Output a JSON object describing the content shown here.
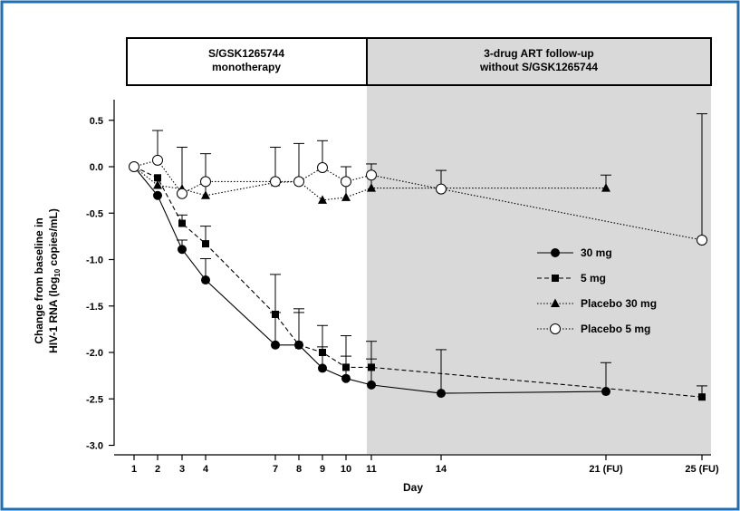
{
  "colors": {
    "frame_border": "#1f6fb5",
    "followup_shading": "#d9d9d9",
    "series_line": "#000000",
    "open_marker_fill": "#ffffff"
  },
  "banners": {
    "left": {
      "line1": "S/GSK1265744",
      "line2": "monotherapy"
    },
    "right": {
      "line1": "3-drug ART follow-up",
      "line2": "without S/GSK1265744"
    }
  },
  "chart_data": {
    "type": "line",
    "xlabel": "Day",
    "ylabel_line1": "Change from baseline in",
    "ylabel_line2_prefix": "HIV-1 RNA (log",
    "ylabel_line2_sub": "10",
    "ylabel_line2_suffix": " copies/mL)",
    "ylim": [
      -3.0,
      0.7
    ],
    "yticks": [
      0.5,
      0.0,
      -0.5,
      -1.0,
      -1.5,
      -2.0,
      -2.5,
      -3.0
    ],
    "ytick_labels": [
      "0.5",
      "0.0",
      "-0.5",
      "-1.0",
      "-1.5",
      "-2.0",
      "-2.5",
      "-3.0"
    ],
    "xticks": [
      1,
      2,
      3,
      4,
      7,
      8,
      9,
      10,
      11,
      14,
      21,
      25
    ],
    "xtick_labels": [
      "1",
      "2",
      "3",
      "4",
      "7",
      "8",
      "9",
      "10",
      "11",
      "14",
      "21 (FU)",
      "25 (FU)"
    ],
    "shaded_from_day": 11,
    "legend_position": "center-right",
    "series": [
      {
        "name": "30 mg",
        "marker": "filled-circle",
        "line_style": "solid",
        "x": [
          1,
          2,
          3,
          4,
          7,
          8,
          9,
          10,
          11,
          14,
          21
        ],
        "y": [
          0.0,
          -0.31,
          -0.89,
          -1.22,
          -1.92,
          -1.92,
          -2.17,
          -2.28,
          -2.35,
          -2.44,
          -2.42
        ],
        "error_upper": [
          null,
          null,
          -0.79,
          -0.99,
          -1.57,
          -1.57,
          -1.94,
          -2.04,
          -2.07,
          -1.97,
          -2.11
        ]
      },
      {
        "name": "5 mg",
        "marker": "filled-square",
        "line_style": "dashed",
        "x": [
          1,
          2,
          3,
          4,
          7,
          8,
          9,
          10,
          11,
          25
        ],
        "y": [
          0.0,
          -0.12,
          -0.61,
          -0.83,
          -1.59,
          -1.92,
          -2.0,
          -2.16,
          -2.16,
          -2.48
        ],
        "error_upper": [
          null,
          null,
          -0.52,
          -0.64,
          -1.16,
          -1.53,
          -1.71,
          -1.82,
          -1.88,
          -2.36
        ]
      },
      {
        "name": "Placebo 30 mg",
        "marker": "filled-triangle",
        "line_style": "dotted",
        "x": [
          1,
          2,
          3,
          4,
          7,
          8,
          9,
          10,
          11,
          14,
          21
        ],
        "y": [
          0.0,
          -0.2,
          -0.24,
          -0.31,
          -0.17,
          -0.16,
          -0.36,
          -0.33,
          -0.23,
          -0.23,
          -0.23
        ],
        "error_upper": [
          null,
          null,
          0.21,
          0.14,
          0.21,
          0.25,
          null,
          0.0,
          0.03,
          null,
          -0.09
        ]
      },
      {
        "name": "Placebo 5 mg",
        "marker": "open-circle",
        "line_style": "dotted",
        "x": [
          1,
          2,
          3,
          4,
          7,
          8,
          9,
          10,
          11,
          14,
          25
        ],
        "y": [
          0.0,
          0.07,
          -0.29,
          -0.16,
          -0.16,
          -0.16,
          -0.01,
          -0.16,
          -0.09,
          -0.24,
          -0.79
        ],
        "error_upper": [
          null,
          0.39,
          null,
          null,
          null,
          null,
          0.28,
          null,
          null,
          -0.04,
          0.57
        ]
      }
    ]
  }
}
